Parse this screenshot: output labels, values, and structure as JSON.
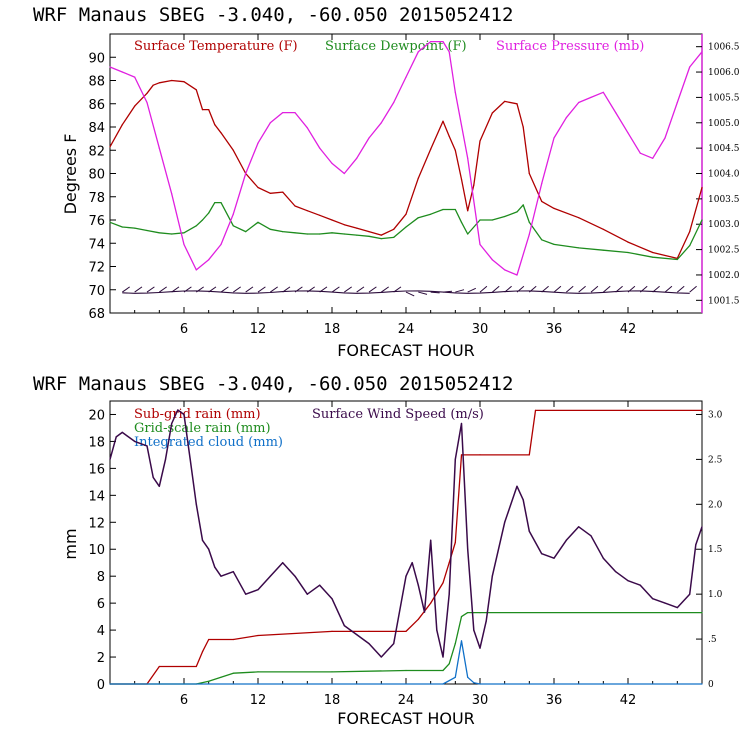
{
  "chart_data": [
    {
      "type": "line",
      "title": "WRF   Manaus SBEG   -3.040, -60.050  2015052412",
      "xlabel": "FORECAST HOUR",
      "ylabel": "Degrees F",
      "xlim": [
        0,
        48
      ],
      "ylim": [
        68,
        92
      ],
      "y2lim": [
        1001.25,
        1006.75
      ],
      "xticks": [
        "6",
        "12",
        "18",
        "24",
        "30",
        "36",
        "42"
      ],
      "yticks": [
        "68",
        "70",
        "72",
        "74",
        "76",
        "78",
        "80",
        "82",
        "84",
        "86",
        "88",
        "90"
      ],
      "y2ticks": [
        "1001.5",
        "1002.0",
        "1002.5",
        "1003.0",
        "1003.5",
        "1004.0",
        "1004.5",
        "1005.0",
        "1005.5",
        "1006.0",
        "1006.5"
      ],
      "legend": [
        "Surface Temperature (F)",
        "Surface Dewpoint (F)",
        "Surface Pressure (mb)"
      ],
      "legend_position": "top",
      "colors": {
        "temperature": "#b00000",
        "dewpoint": "#1e8c1e",
        "pressure": "#e020e0",
        "wind_barbs": "#2a0a3a"
      },
      "series": [
        {
          "name": "Surface Temperature (F)",
          "axis": "left",
          "x": [
            0,
            1,
            2,
            3,
            3.5,
            4,
            5,
            6,
            7,
            7.5,
            8,
            8.5,
            9,
            10,
            11,
            12,
            13,
            14,
            15,
            16,
            17,
            18,
            19,
            20,
            21,
            22,
            23,
            24,
            25,
            26,
            27,
            27.5,
            28,
            28.5,
            29,
            29.5,
            30,
            31,
            32,
            33,
            33.5,
            34,
            35,
            36,
            38,
            40,
            42,
            44,
            46,
            47,
            48
          ],
          "values": [
            82.3,
            84.2,
            85.8,
            86.9,
            87.6,
            87.8,
            88.0,
            87.9,
            87.2,
            85.5,
            85.5,
            84.2,
            83.5,
            82.0,
            80.0,
            78.8,
            78.3,
            78.4,
            77.2,
            76.8,
            76.4,
            76.0,
            75.6,
            75.3,
            75.0,
            74.7,
            75.2,
            76.5,
            79.6,
            82.1,
            84.5,
            83.2,
            82.0,
            79.5,
            76.8,
            79.0,
            82.8,
            85.2,
            86.2,
            86.0,
            84.0,
            80.0,
            77.6,
            77.0,
            76.2,
            75.2,
            74.1,
            73.2,
            72.7,
            75.0,
            78.8
          ]
        },
        {
          "name": "Surface Dewpoint (F)",
          "axis": "left",
          "x": [
            0,
            1,
            2,
            3,
            4,
            5,
            6,
            7,
            7.5,
            8,
            8.5,
            9,
            10,
            11,
            12,
            13,
            14,
            15,
            16,
            17,
            18,
            19,
            20,
            21,
            22,
            23,
            24,
            25,
            26,
            27,
            28,
            28.5,
            29,
            30,
            31,
            32,
            33,
            33.5,
            34,
            35,
            36,
            38,
            40,
            42,
            44,
            46,
            47,
            48
          ],
          "values": [
            75.8,
            75.4,
            75.3,
            75.1,
            74.9,
            74.8,
            74.9,
            75.5,
            76.0,
            76.6,
            77.5,
            77.5,
            75.5,
            75.0,
            75.8,
            75.2,
            75.0,
            74.9,
            74.8,
            74.8,
            74.9,
            74.8,
            74.7,
            74.6,
            74.4,
            74.5,
            75.4,
            76.2,
            76.5,
            76.9,
            76.9,
            75.8,
            74.8,
            76.0,
            76.0,
            76.3,
            76.7,
            77.3,
            75.8,
            74.3,
            73.9,
            73.6,
            73.4,
            73.2,
            72.8,
            72.6,
            73.8,
            76.0
          ]
        },
        {
          "name": "Surface Pressure (mb)",
          "axis": "right",
          "x": [
            0,
            1,
            2,
            3,
            4,
            5,
            6,
            7,
            8,
            9,
            10,
            11,
            12,
            13,
            14,
            15,
            16,
            17,
            18,
            19,
            20,
            21,
            22,
            23,
            24,
            25,
            26,
            27,
            27.5,
            28,
            29,
            30,
            31,
            32,
            33,
            34,
            35,
            36,
            37,
            38,
            39,
            40,
            41,
            42,
            43,
            44,
            45,
            46,
            47,
            48
          ],
          "values": [
            1006.1,
            1006.0,
            1005.9,
            1005.4,
            1004.5,
            1003.6,
            1002.6,
            1002.1,
            1002.3,
            1002.6,
            1003.2,
            1004.0,
            1004.6,
            1005.0,
            1005.2,
            1005.2,
            1004.9,
            1004.5,
            1004.2,
            1004.0,
            1004.3,
            1004.7,
            1005.0,
            1005.4,
            1005.9,
            1006.4,
            1006.6,
            1006.6,
            1006.4,
            1005.6,
            1004.3,
            1002.6,
            1002.3,
            1002.1,
            1002.0,
            1002.8,
            1003.8,
            1004.7,
            1005.1,
            1005.4,
            1005.5,
            1005.6,
            1005.2,
            1004.8,
            1004.4,
            1004.3,
            1004.7,
            1005.4,
            1006.1,
            1006.4
          ]
        }
      ]
    },
    {
      "type": "line",
      "title": "WRF   Manaus SBEG   -3.040, -60.050  2015052412",
      "xlabel": "FORECAST HOUR",
      "ylabel": "mm",
      "xlim": [
        0,
        48
      ],
      "ylim": [
        0,
        21
      ],
      "y2lim": [
        0,
        3.15
      ],
      "xticks": [
        "6",
        "12",
        "18",
        "24",
        "30",
        "36",
        "42"
      ],
      "yticks": [
        "0",
        "2",
        "4",
        "6",
        "8",
        "10",
        "12",
        "14",
        "16",
        "18",
        "20"
      ],
      "y2ticks": [
        "0",
        ".5",
        "1.0",
        "1.5",
        "2.0",
        "2.5",
        "3.0"
      ],
      "legend": [
        "Sub-grid rain (mm)",
        "Surface Wind Speed (m/s)",
        "Grid-scale rain (mm)",
        "Integrated cloud (mm)"
      ],
      "legend_position": "top-left",
      "colors": {
        "subgrid": "#b00000",
        "wind": "#3a0a4a",
        "gridscale": "#1e8c1e",
        "cloud": "#1070c8"
      },
      "series": [
        {
          "name": "Sub-grid rain (mm)",
          "axis": "left",
          "x": [
            0,
            3,
            4,
            7,
            7.5,
            8,
            10,
            12,
            18,
            21,
            24,
            25,
            26,
            27,
            27.5,
            28,
            28.5,
            30,
            34,
            34.5,
            48
          ],
          "values": [
            0,
            0,
            1.3,
            1.3,
            2.4,
            3.3,
            3.3,
            3.6,
            3.9,
            3.9,
            3.9,
            4.8,
            6.0,
            7.5,
            9.0,
            10.5,
            17.0,
            17.0,
            17.0,
            20.3,
            20.3
          ]
        },
        {
          "name": "Grid-scale rain (mm)",
          "axis": "left",
          "x": [
            0,
            7,
            8,
            9,
            10,
            12,
            18,
            24,
            27,
            27.5,
            28,
            28.5,
            29,
            29.5,
            30,
            48
          ],
          "values": [
            0,
            0,
            0.2,
            0.5,
            0.8,
            0.9,
            0.9,
            1.0,
            1.0,
            1.5,
            3.0,
            5.0,
            5.3,
            5.3,
            5.3,
            5.3
          ]
        },
        {
          "name": "Integrated cloud (mm)",
          "axis": "left",
          "x": [
            0,
            27,
            28,
            28.5,
            29,
            29.5,
            30,
            48
          ],
          "values": [
            0,
            0,
            0.5,
            3.2,
            0.5,
            0.1,
            0,
            0
          ]
        },
        {
          "name": "Surface Wind Speed (m/s)",
          "axis": "right",
          "x": [
            0,
            0.5,
            1,
            2,
            3,
            3.5,
            4,
            4.5,
            5,
            5.5,
            6,
            6.5,
            7,
            7.5,
            8,
            8.5,
            9,
            10,
            11,
            12,
            13,
            14,
            15,
            16,
            17,
            18,
            19,
            20,
            21,
            22,
            23,
            24,
            24.5,
            25,
            25.5,
            26,
            26.5,
            27,
            27.5,
            28,
            28.5,
            29,
            29.5,
            30,
            30.5,
            31,
            32,
            33,
            33.5,
            34,
            35,
            36,
            37,
            38,
            39,
            40,
            41,
            42,
            43,
            44,
            45,
            46,
            47,
            47.5,
            48
          ],
          "values": [
            2.5,
            2.75,
            2.8,
            2.7,
            2.65,
            2.3,
            2.2,
            2.5,
            2.9,
            3.05,
            3.0,
            2.5,
            2.0,
            1.6,
            1.5,
            1.3,
            1.2,
            1.25,
            1.0,
            1.05,
            1.2,
            1.35,
            1.2,
            1.0,
            1.1,
            0.95,
            0.65,
            0.55,
            0.45,
            0.3,
            0.45,
            1.2,
            1.35,
            1.1,
            0.8,
            1.6,
            0.6,
            0.3,
            1.0,
            2.5,
            2.9,
            1.5,
            0.6,
            0.4,
            0.7,
            1.2,
            1.8,
            2.2,
            2.05,
            1.7,
            1.45,
            1.4,
            1.6,
            1.75,
            1.65,
            1.4,
            1.25,
            1.15,
            1.1,
            0.95,
            0.9,
            0.85,
            1.0,
            1.55,
            1.75
          ]
        }
      ]
    }
  ]
}
